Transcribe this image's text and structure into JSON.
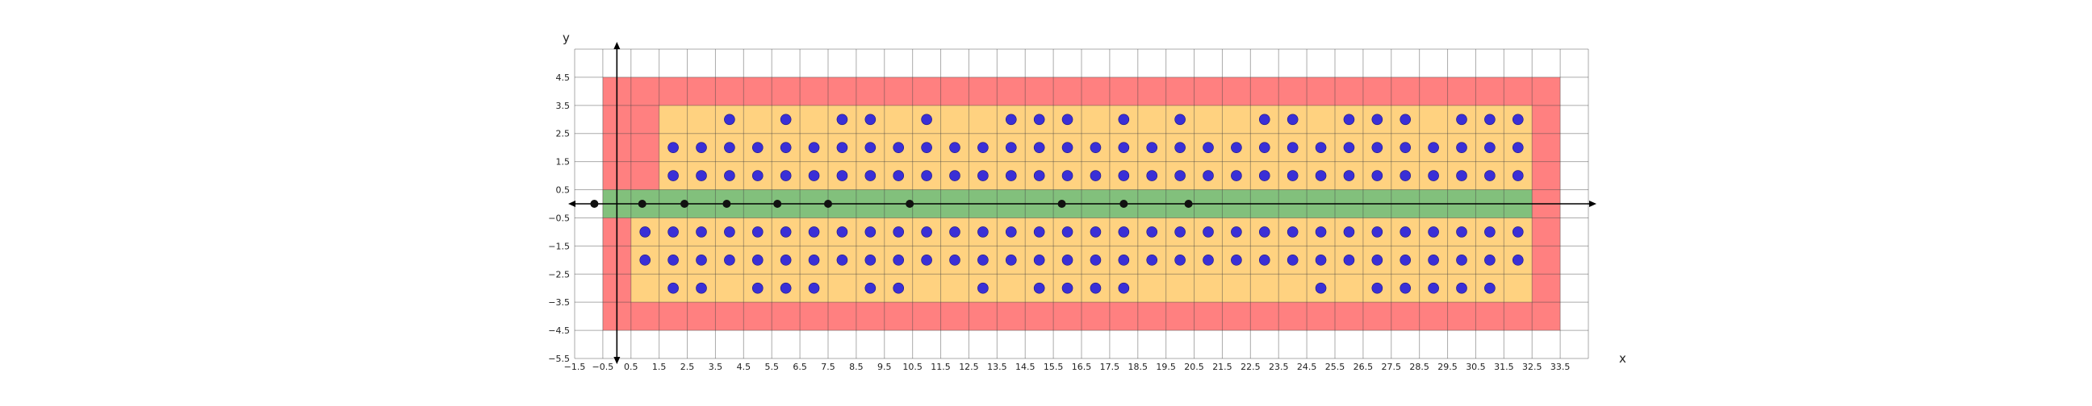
{
  "chart_data": {
    "type": "scatter",
    "xlabel": "x",
    "ylabel": "y",
    "xlim": [
      -1.5,
      34.5
    ],
    "ylim": [
      -5.5,
      5.5
    ],
    "grid": true,
    "x_ticks": [
      "-1.5",
      "-0.5",
      "0.5",
      "1.5",
      "2.5",
      "3.5",
      "4.5",
      "5.5",
      "6.5",
      "7.5",
      "8.5",
      "9.5",
      "10.5",
      "11.5",
      "12.5",
      "13.5",
      "14.5",
      "15.5",
      "16.5",
      "17.5",
      "18.5",
      "19.5",
      "20.5",
      "21.5",
      "22.5",
      "23.5",
      "24.5",
      "25.5",
      "26.5",
      "27.5",
      "28.5",
      "29.5",
      "30.5",
      "31.5",
      "32.5",
      "33.5"
    ],
    "y_ticks": [
      "4.5",
      "3.5",
      "2.5",
      "1.5",
      "0.5",
      "-0.5",
      "-1.5",
      "-2.5",
      "-3.5",
      "-4.5",
      "-5.5"
    ],
    "colors": {
      "outer_zone": "#ff8080",
      "inner_zone": "#ffd280",
      "center_band": "#82c07c",
      "dots": "#3a2fd6",
      "axis_points": "#111111"
    },
    "regions": [
      {
        "name": "outer",
        "x": [
          -0.5,
          33.5
        ],
        "y": [
          -4.5,
          4.5
        ],
        "color": "#ff8080"
      },
      {
        "name": "inner-top",
        "x": [
          1.5,
          32.5
        ],
        "y": [
          0.5,
          3.5
        ],
        "color": "#ffd280"
      },
      {
        "name": "inner-bottom",
        "x": [
          0.5,
          32.5
        ],
        "y": [
          -3.5,
          -0.5
        ],
        "color": "#ffd280"
      },
      {
        "name": "center",
        "x": [
          -0.5,
          32.5
        ],
        "y": [
          -0.5,
          0.5
        ],
        "color": "#82c07c"
      }
    ],
    "axis_points": [
      -0.8,
      0.9,
      2.4,
      3.9,
      5.7,
      7.5,
      10.4,
      15.8,
      18.0,
      20.3
    ],
    "blue_points": {
      "y3": [
        4,
        6,
        8,
        9,
        11,
        14,
        15,
        16,
        18,
        20,
        23,
        24,
        26,
        27,
        28,
        30,
        31,
        32
      ],
      "y2": [
        2,
        3,
        4,
        5,
        6,
        7,
        8,
        9,
        10,
        11,
        12,
        13,
        14,
        15,
        16,
        17,
        18,
        19,
        20,
        21,
        22,
        23,
        24,
        25,
        26,
        27,
        28,
        29,
        30,
        31,
        32
      ],
      "y1": [
        2,
        3,
        4,
        5,
        6,
        7,
        8,
        9,
        10,
        11,
        12,
        13,
        14,
        15,
        16,
        17,
        18,
        19,
        20,
        21,
        22,
        23,
        24,
        25,
        26,
        27,
        28,
        29,
        30,
        31,
        32
      ],
      "ym1": [
        1,
        2,
        3,
        4,
        5,
        6,
        7,
        8,
        9,
        10,
        11,
        12,
        13,
        14,
        15,
        16,
        17,
        18,
        19,
        20,
        21,
        22,
        23,
        24,
        25,
        26,
        27,
        28,
        29,
        30,
        31,
        32
      ],
      "ym2": [
        1,
        2,
        3,
        4,
        5,
        6,
        7,
        8,
        9,
        10,
        11,
        12,
        13,
        14,
        15,
        16,
        17,
        18,
        19,
        20,
        21,
        22,
        23,
        24,
        25,
        26,
        27,
        28,
        29,
        30,
        31,
        32
      ],
      "ym3": [
        2,
        3,
        5,
        6,
        7,
        9,
        10,
        13,
        15,
        16,
        17,
        18,
        25,
        27,
        28,
        29,
        30,
        31
      ]
    }
  }
}
